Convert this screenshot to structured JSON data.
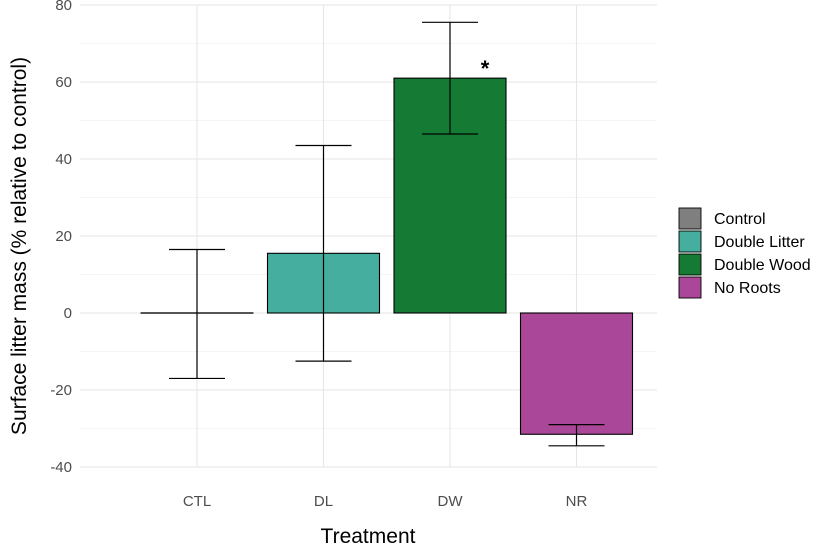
{
  "chart_data": {
    "type": "bar",
    "title": "",
    "xlabel": "Treatment",
    "ylabel": "Surface litter mass (% relative to control)",
    "ylim": [
      -40,
      80
    ],
    "yticks": [
      -40,
      -20,
      0,
      20,
      40,
      60,
      80
    ],
    "ytick_labels": [
      "-40",
      "-20",
      "0",
      "20",
      "40",
      "60",
      "80"
    ],
    "grid": true,
    "categories": [
      "CTL",
      "DL",
      "DW",
      "NR"
    ],
    "values": [
      0,
      15.5,
      61,
      -31.5
    ],
    "error_low": [
      -17,
      -12.5,
      46.5,
      -34.5
    ],
    "error_high": [
      16.5,
      43.5,
      75.5,
      -29
    ],
    "colors": [
      "#7f7f7f",
      "#45ae9e",
      "#157a33",
      "#ab4799"
    ],
    "legend": {
      "placement": "right",
      "entries": [
        {
          "label": "Control",
          "color": "#7f7f7f"
        },
        {
          "label": "Double Litter",
          "color": "#45ae9e"
        },
        {
          "label": "Double Wood",
          "color": "#157a33"
        },
        {
          "label": "No Roots",
          "color": "#ab4799"
        }
      ]
    },
    "annotations": [
      {
        "category": "DW",
        "text": "*"
      }
    ]
  }
}
